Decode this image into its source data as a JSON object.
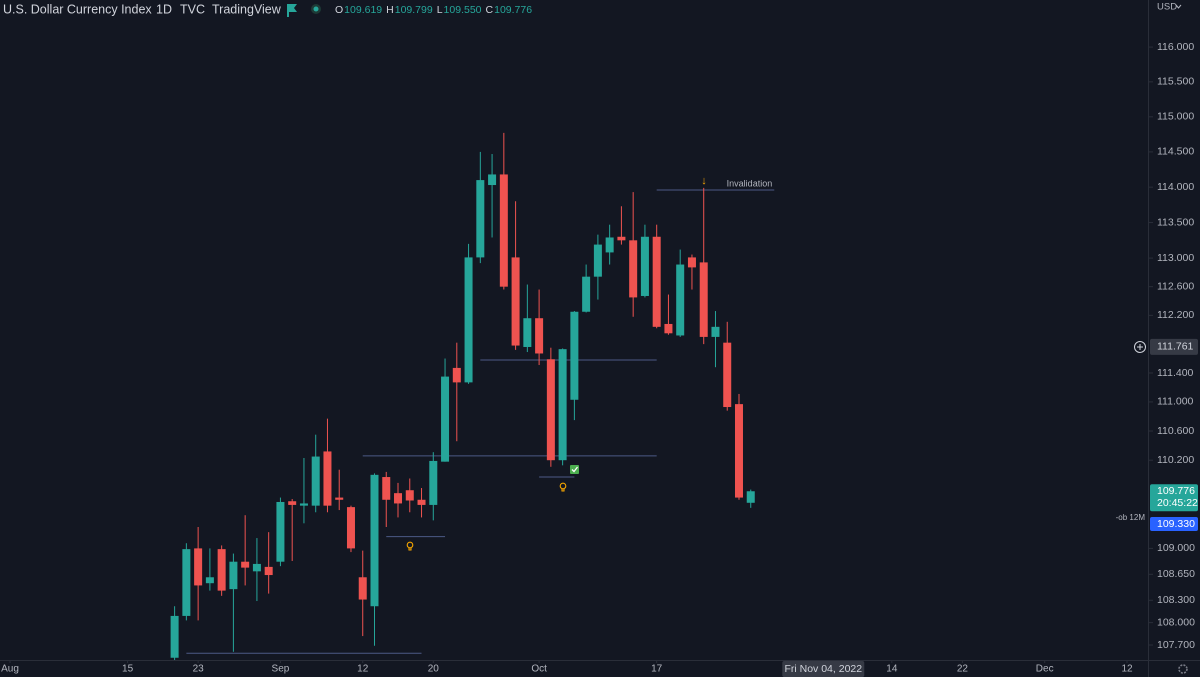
{
  "header": {
    "symbol": "U.S. Dollar Currency Index",
    "interval": "1D",
    "exchange": "TVC",
    "source": "TradingView",
    "ohlc": [
      {
        "key": "O",
        "value": "109.619"
      },
      {
        "key": "H",
        "value": "109.799"
      },
      {
        "key": "L",
        "value": "109.550"
      },
      {
        "key": "C",
        "value": "109.776"
      }
    ],
    "currency": "USD"
  },
  "chart_data": {
    "type": "candlestick",
    "log_scale": true,
    "grid": false,
    "colors": {
      "up": "#26a69a",
      "down": "#ef5350",
      "level": "#4c5a86"
    },
    "x": [
      "2022-08-19",
      "2022-08-22",
      "2022-08-23",
      "2022-08-24",
      "2022-08-25",
      "2022-08-26",
      "2022-08-29",
      "2022-08-30",
      "2022-08-31",
      "2022-09-01",
      "2022-09-02",
      "2022-09-05",
      "2022-09-06",
      "2022-09-07",
      "2022-09-08",
      "2022-09-09",
      "2022-09-12",
      "2022-09-13",
      "2022-09-14",
      "2022-09-15",
      "2022-09-16",
      "2022-09-19",
      "2022-09-20",
      "2022-09-21",
      "2022-09-22",
      "2022-09-23",
      "2022-09-26",
      "2022-09-27",
      "2022-09-28",
      "2022-09-29",
      "2022-09-30",
      "2022-10-03",
      "2022-10-04",
      "2022-10-05",
      "2022-10-06",
      "2022-10-07",
      "2022-10-10",
      "2022-10-11",
      "2022-10-12",
      "2022-10-13",
      "2022-10-14",
      "2022-10-17",
      "2022-10-18",
      "2022-10-19",
      "2022-10-20",
      "2022-10-21",
      "2022-10-24",
      "2022-10-25",
      "2022-10-26",
      "2022-10-27"
    ],
    "open": [
      107.53,
      108.09,
      109.0,
      108.53,
      108.99,
      108.45,
      108.82,
      108.69,
      108.75,
      108.82,
      109.64,
      109.58,
      109.58,
      110.32,
      109.69,
      109.56,
      108.61,
      108.22,
      109.97,
      109.75,
      109.79,
      109.66,
      109.59,
      110.18,
      111.47,
      111.27,
      113.01,
      114.03,
      114.18,
      113.01,
      111.76,
      112.16,
      111.59,
      110.2,
      111.03,
      112.25,
      112.74,
      113.08,
      113.3,
      113.25,
      112.47,
      113.3,
      112.08,
      111.92,
      113.01,
      112.94,
      111.9,
      111.82,
      110.97,
      109.619
    ],
    "high": [
      108.22,
      109.07,
      109.29,
      109.0,
      109.04,
      108.93,
      109.45,
      109.14,
      109.22,
      109.69,
      109.67,
      110.23,
      110.55,
      110.77,
      110.07,
      109.58,
      108.97,
      110.02,
      110.04,
      109.89,
      109.95,
      109.82,
      110.31,
      111.6,
      111.82,
      113.2,
      114.5,
      114.47,
      114.77,
      113.8,
      112.63,
      112.56,
      111.75,
      111.74,
      112.26,
      112.91,
      113.33,
      113.47,
      113.73,
      113.93,
      113.47,
      113.47,
      112.49,
      113.12,
      113.05,
      113.99,
      112.26,
      112.11,
      111.11,
      109.799
    ],
    "low": [
      107.5,
      108.03,
      108.03,
      108.43,
      108.36,
      107.61,
      108.5,
      108.29,
      108.39,
      108.76,
      108.83,
      109.34,
      109.49,
      109.49,
      109.52,
      108.95,
      107.82,
      107.69,
      109.29,
      109.42,
      109.49,
      109.42,
      109.38,
      110.18,
      110.46,
      111.25,
      112.93,
      113.29,
      112.56,
      111.72,
      111.69,
      111.51,
      110.11,
      110.13,
      110.75,
      112.24,
      112.42,
      112.91,
      113.19,
      112.18,
      112.45,
      112.02,
      111.93,
      111.9,
      112.56,
      111.8,
      111.48,
      110.88,
      109.66,
      109.55
    ],
    "close": [
      108.09,
      108.99,
      108.5,
      108.61,
      108.43,
      108.82,
      108.74,
      108.79,
      108.64,
      109.63,
      109.59,
      109.61,
      110.25,
      109.58,
      109.66,
      109.0,
      108.31,
      110.0,
      109.66,
      109.61,
      109.65,
      109.59,
      110.19,
      111.35,
      111.27,
      113.01,
      114.1,
      114.18,
      112.6,
      111.78,
      112.16,
      111.67,
      110.2,
      111.73,
      112.25,
      112.74,
      113.19,
      113.29,
      113.25,
      112.45,
      113.3,
      112.04,
      111.95,
      112.91,
      112.87,
      111.9,
      112.04,
      110.93,
      109.69,
      109.776
    ],
    "ylim": [
      107.5,
      116.68
    ],
    "yticks": [
      {
        "value": 116,
        "label": "116.000"
      },
      {
        "value": 115.5,
        "label": "115.500"
      },
      {
        "value": 115,
        "label": "115.000"
      },
      {
        "value": 114.5,
        "label": "114.500"
      },
      {
        "value": 114,
        "label": "114.000"
      },
      {
        "value": 113.5,
        "label": "113.500"
      },
      {
        "value": 113,
        "label": "113.000"
      },
      {
        "value": 112.6,
        "label": "112.600"
      },
      {
        "value": 112.2,
        "label": "112.200"
      },
      {
        "value": 111.4,
        "label": "111.400"
      },
      {
        "value": 111,
        "label": "111.000"
      },
      {
        "value": 110.6,
        "label": "110.600"
      },
      {
        "value": 110.2,
        "label": "110.200"
      },
      {
        "value": 109,
        "label": "109.000"
      },
      {
        "value": 108.65,
        "label": "108.650"
      },
      {
        "value": 108.3,
        "label": "108.300"
      },
      {
        "value": 108,
        "label": "108.000"
      },
      {
        "value": 107.7,
        "label": "107.700"
      }
    ],
    "xlim": [
      "2022-08-01",
      "2022-12-12"
    ],
    "xticks": [
      {
        "value": "2022-08-01",
        "label": "Aug"
      },
      {
        "value": "2022-08-15",
        "label": "15"
      },
      {
        "value": "2022-08-23",
        "label": "23"
      },
      {
        "value": "2022-09-01",
        "label": "Sep"
      },
      {
        "value": "2022-09-12",
        "label": "12"
      },
      {
        "value": "2022-09-20",
        "label": "20"
      },
      {
        "value": "2022-10-03",
        "label": "Oct"
      },
      {
        "value": "2022-10-17",
        "label": "17"
      },
      {
        "value": "2022-11-14",
        "label": "14"
      },
      {
        "value": "2022-11-22",
        "label": "22"
      },
      {
        "value": "2022-12-01",
        "label": "Dec"
      },
      {
        "value": "2022-12-12",
        "label": "12"
      }
    ],
    "levels": [
      {
        "price": 107.59,
        "start": "2022-08-22",
        "end": "2022-09-19"
      },
      {
        "price": 109.16,
        "start": "2022-09-14",
        "end": "2022-09-21"
      },
      {
        "price": 110.26,
        "start": "2022-09-12",
        "end": "2022-10-17"
      },
      {
        "price": 111.58,
        "start": "2022-09-26",
        "end": "2022-10-17"
      },
      {
        "price": 109.97,
        "start": "2022-10-03",
        "end": "2022-10-06"
      },
      {
        "price": 113.96,
        "start": "2022-10-17",
        "end": "2022-10-31"
      }
    ],
    "annotation": "Invalidation",
    "crosshair": {
      "date": "2022-11-04",
      "date_label": "Fri Nov 04, 2022",
      "price": 111.761
    },
    "last_price": {
      "value": 109.776,
      "countdown": "20:45:22"
    },
    "order": {
      "name": "-ob 12M",
      "price": 109.33,
      "value_label": "109.330"
    }
  }
}
